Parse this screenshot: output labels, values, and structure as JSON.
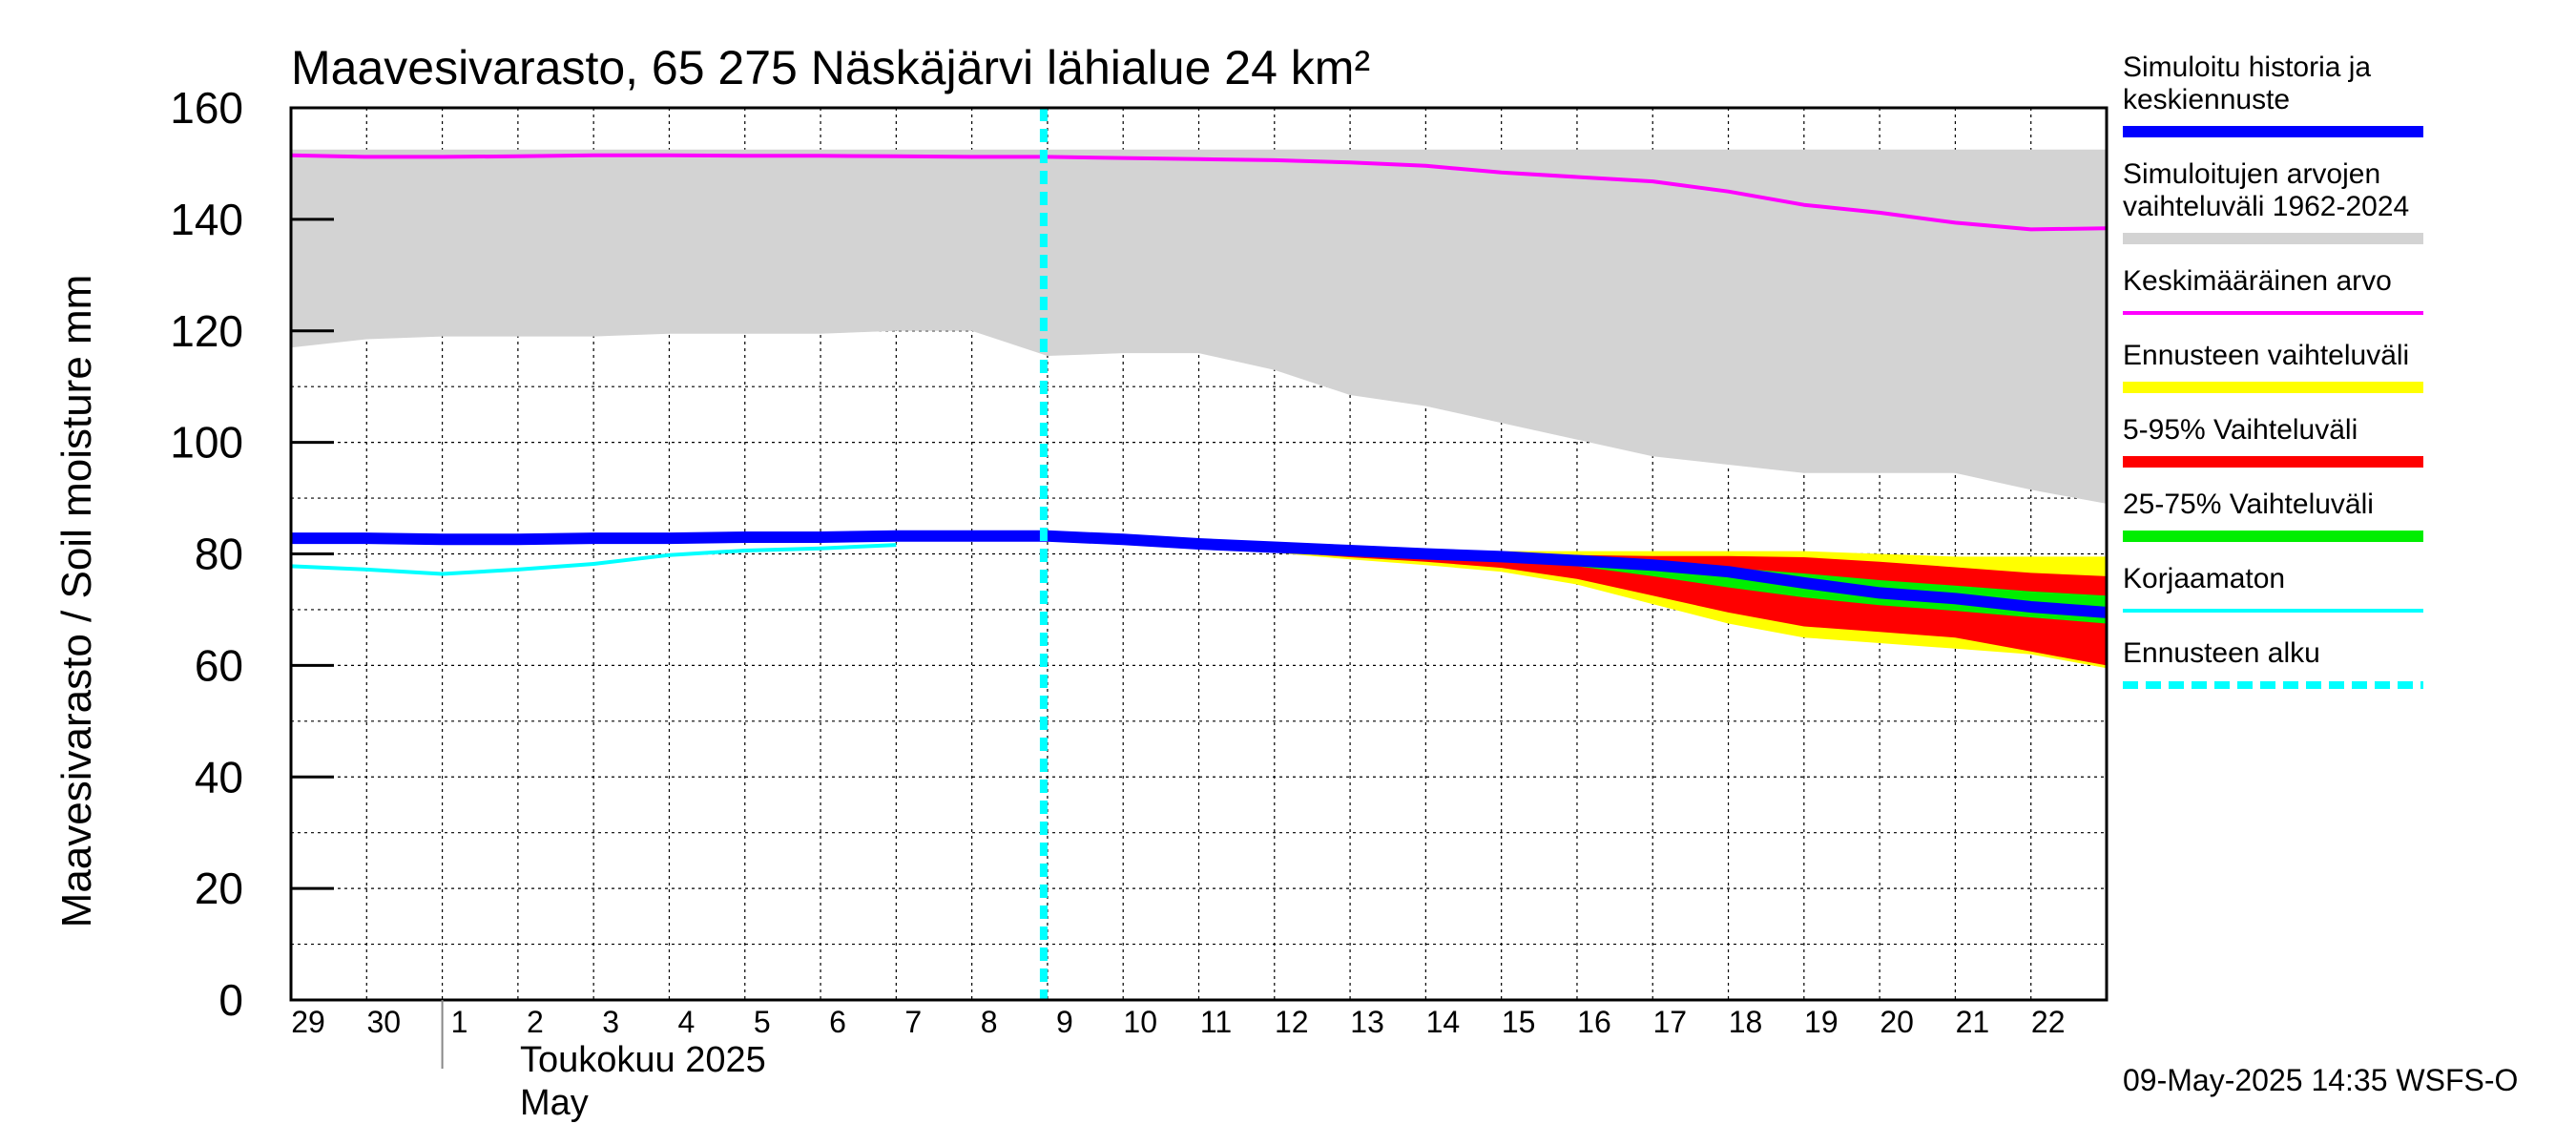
{
  "chart_data": {
    "type": "area",
    "title": "Maavesivarasto, 65 275 Näskäjärvi lähialue 24 km²",
    "ylabel": "Maavesivarasto / Soil moisture   mm",
    "ylim": [
      0,
      160
    ],
    "yticks": [
      0,
      20,
      40,
      60,
      80,
      100,
      120,
      140,
      160
    ],
    "grid": true,
    "legend_position": "right",
    "month_label_fi": "Toukokuu  2025",
    "month_label_en": "May",
    "timestamp": "09-May-2025 14:35 WSFS-O",
    "x_dates": [
      "2025-04-29",
      "2025-04-30",
      "2025-05-01",
      "2025-05-02",
      "2025-05-03",
      "2025-05-04",
      "2025-05-05",
      "2025-05-06",
      "2025-05-07",
      "2025-05-08",
      "2025-05-09",
      "2025-05-10",
      "2025-05-11",
      "2025-05-12",
      "2025-05-13",
      "2025-05-14",
      "2025-05-15",
      "2025-05-16",
      "2025-05-17",
      "2025-05-18",
      "2025-05-19",
      "2025-05-20",
      "2025-05-21",
      "2025-05-22",
      "2025-05-23"
    ],
    "day_labels": [
      "29",
      "30",
      "1",
      "2",
      "3",
      "4",
      "5",
      "6",
      "7",
      "8",
      "9",
      "10",
      "11",
      "12",
      "13",
      "14",
      "15",
      "16",
      "17",
      "18",
      "19",
      "20",
      "21",
      "22"
    ],
    "forecast_start": "2025-05-09",
    "series": {
      "range_1962_2024": {
        "upper": [
          152.5,
          152.5,
          152.5,
          152.5,
          152.5,
          152.5,
          152.5,
          152.5,
          152.5,
          152.5,
          152.5,
          152.5,
          152.5,
          152.5,
          152.5,
          152.5,
          152.5,
          152.5,
          152.5,
          152.5,
          152.5,
          152.5,
          152.5,
          152.5,
          152.5
        ],
        "lower": [
          117,
          118.5,
          119,
          119,
          119,
          119.5,
          119.5,
          119.5,
          120,
          120,
          115.5,
          116,
          116,
          113,
          108.5,
          106.5,
          103.5,
          100.5,
          97.5,
          96,
          94.5,
          94.5,
          94.5,
          91.5,
          89
        ]
      },
      "mean": [
        151.5,
        151.2,
        151.2,
        151.3,
        151.5,
        151.5,
        151.4,
        151.4,
        151.3,
        151.2,
        151.2,
        151,
        150.8,
        150.6,
        150.2,
        149.6,
        148.4,
        147.6,
        146.8,
        145,
        142.6,
        141.2,
        139.4,
        138.2,
        138.4
      ],
      "forecast_range": {
        "upper": [
          null,
          null,
          null,
          null,
          null,
          null,
          null,
          null,
          null,
          null,
          83,
          82.5,
          81.8,
          81.2,
          81,
          80.8,
          80.5,
          80.5,
          80.5,
          80.5,
          80.5,
          80,
          79.5,
          79.5,
          79.5
        ],
        "lower": [
          null,
          null,
          null,
          null,
          null,
          null,
          null,
          null,
          null,
          null,
          83,
          82.5,
          81.4,
          80.2,
          79,
          78,
          76.8,
          74.5,
          71,
          67.5,
          65,
          64,
          63,
          62,
          59.5
        ]
      },
      "p5_95": {
        "upper": [
          null,
          null,
          null,
          null,
          null,
          null,
          null,
          null,
          null,
          null,
          83,
          82.5,
          81.6,
          81,
          80.6,
          80.3,
          80,
          79.8,
          79.6,
          79.6,
          79.4,
          78.6,
          77.6,
          76.6,
          76
        ],
        "lower": [
          null,
          null,
          null,
          null,
          null,
          null,
          null,
          null,
          null,
          null,
          83,
          82.5,
          81.5,
          80.4,
          79.4,
          78.6,
          77.5,
          75.5,
          72.5,
          69.5,
          67,
          66,
          65,
          62.5,
          60
        ]
      },
      "p25_75": {
        "upper": [
          null,
          null,
          null,
          null,
          null,
          null,
          null,
          null,
          null,
          null,
          83,
          82.5,
          81.8,
          81.2,
          80.8,
          80.4,
          80,
          79.4,
          78.5,
          77.5,
          76.5,
          75.3,
          74.3,
          73.3,
          72.5
        ],
        "lower": [
          null,
          null,
          null,
          null,
          null,
          null,
          null,
          null,
          null,
          null,
          83,
          82.5,
          81.8,
          81,
          80.4,
          79.7,
          79,
          77.8,
          76,
          74,
          72.2,
          70.8,
          69.8,
          68.6,
          67.5
        ]
      },
      "simulated_history_median": [
        82.8,
        82.8,
        82.6,
        82.6,
        82.8,
        82.8,
        83,
        83,
        83.2,
        83.2,
        83.2,
        82.6,
        81.8,
        81.2,
        80.6,
        80,
        79.5,
        78.8,
        78,
        76.8,
        74.8,
        73,
        72,
        70.5,
        69.5
      ],
      "uncorrected": [
        77.8,
        77.2,
        76.4,
        77.2,
        78.2,
        79.8,
        80.6,
        81,
        81.6,
        null,
        null,
        null,
        null,
        null,
        null,
        null,
        null,
        null,
        null,
        null,
        null,
        null,
        null,
        null,
        null
      ]
    },
    "colors": {
      "simulated": "#0000ff",
      "range_1962_2024": "#d3d3d3",
      "mean": "#ff00ff",
      "forecast_range": "#ffff00",
      "p5_95": "#ff0000",
      "p25_75": "#00ee00",
      "uncorrected": "#00ffff",
      "forecast_start": "#00ffff"
    }
  },
  "legend": [
    {
      "key": "simulated",
      "label_lines": [
        "Simuloitu historia ja",
        "keskiennuste"
      ],
      "color": "#0000ff",
      "style": "thick"
    },
    {
      "key": "range_1962_2024",
      "label_lines": [
        "Simuloitujen arvojen",
        "vaihteluväli 1962-2024"
      ],
      "color": "#d3d3d3",
      "style": "thick"
    },
    {
      "key": "mean",
      "label_lines": [
        "Keskimääräinen arvo"
      ],
      "color": "#ff00ff",
      "style": "thin"
    },
    {
      "key": "forecast_range",
      "label_lines": [
        "Ennusteen vaihteluväli"
      ],
      "color": "#ffff00",
      "style": "thick"
    },
    {
      "key": "p5_95",
      "label_lines": [
        "5-95% Vaihteluväli"
      ],
      "color": "#ff0000",
      "style": "thick"
    },
    {
      "key": "p25_75",
      "label_lines": [
        "25-75% Vaihteluväli"
      ],
      "color": "#00ee00",
      "style": "thick"
    },
    {
      "key": "uncorrected",
      "label_lines": [
        "Korjaamaton"
      ],
      "color": "#00ffff",
      "style": "thin"
    },
    {
      "key": "forecast_start",
      "label_lines": [
        "Ennusteen alku"
      ],
      "color": "#00ffff",
      "style": "dashed"
    }
  ]
}
